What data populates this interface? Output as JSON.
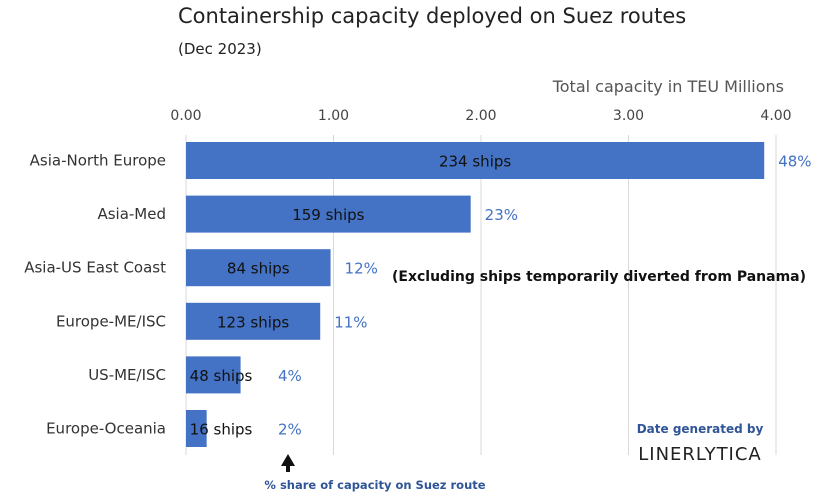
{
  "chart_data": {
    "type": "bar",
    "orientation": "horizontal",
    "title": "Containership capacity deployed on Suez routes",
    "subtitle": "(Dec 2023)",
    "xlabel": "Total capacity in TEU Millions",
    "xlim": [
      0,
      4
    ],
    "x_ticks": [
      "0.00",
      "1.00",
      "2.00",
      "3.00",
      "4.00"
    ],
    "grid": true,
    "categories": [
      "Asia-North Europe",
      "Asia-Med",
      "Asia-US East Coast",
      "Europe-ME/ISC",
      "US-ME/ISC",
      "Europe-Oceania"
    ],
    "values": [
      3.92,
      1.93,
      0.98,
      0.91,
      0.37,
      0.14
    ],
    "ship_labels": [
      "234 ships",
      "159 ships",
      "84 ships",
      "123 ships",
      "48 ships",
      "16 ships"
    ],
    "share_labels": [
      "48%",
      "23%",
      "12%",
      "11%",
      "4%",
      "2%"
    ],
    "annotations": {
      "panama_note": "(Excluding ships temporarily diverted from Panama)",
      "share_note": "% share of capacity on Suez route"
    }
  },
  "credit": {
    "line": "Date generated by",
    "brand": "LINERLYTICA"
  },
  "colors": {
    "bar": "#4472c4",
    "share_text": "#4472c4",
    "grid": "#d9d9d9"
  }
}
